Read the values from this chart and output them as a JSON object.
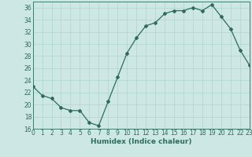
{
  "x": [
    0,
    1,
    2,
    3,
    4,
    5,
    6,
    7,
    8,
    9,
    10,
    11,
    12,
    13,
    14,
    15,
    16,
    17,
    18,
    19,
    20,
    21,
    22,
    23
  ],
  "y": [
    23,
    21.5,
    21,
    19.5,
    19,
    19,
    17,
    16.5,
    20.5,
    24.5,
    28.5,
    31,
    33,
    33.5,
    35,
    35.5,
    35.5,
    36,
    35.5,
    36.5,
    34.5,
    32.5,
    29,
    26.5
  ],
  "line_color": "#2e6b5e",
  "marker": "D",
  "marker_size": 2.0,
  "bg_color": "#cde8e4",
  "grid_color": "#afd4cf",
  "xlabel": "Humidex (Indice chaleur)",
  "ylim": [
    16,
    37
  ],
  "yticks": [
    16,
    18,
    20,
    22,
    24,
    26,
    28,
    30,
    32,
    34,
    36
  ],
  "xlim": [
    0,
    23
  ],
  "xticks": [
    0,
    1,
    2,
    3,
    4,
    5,
    6,
    7,
    8,
    9,
    10,
    11,
    12,
    13,
    14,
    15,
    16,
    17,
    18,
    19,
    20,
    21,
    22,
    23
  ],
  "xlabel_fontsize": 6.5,
  "tick_fontsize": 5.5
}
